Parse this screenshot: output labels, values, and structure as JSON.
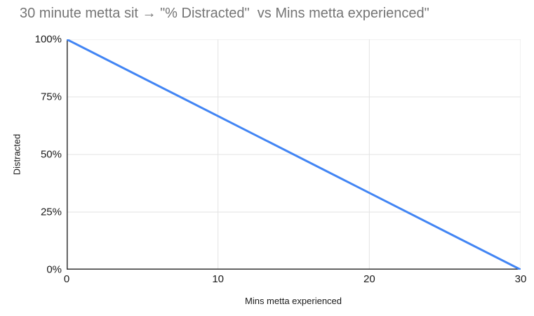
{
  "chart_data": {
    "type": "line",
    "title": "30 minute metta sit → \"% Distracted\"  vs Mins metta experienced\"",
    "xlabel": "Mins metta experienced",
    "ylabel": "Distracted",
    "x": [
      0,
      30
    ],
    "series": [
      {
        "name": "% Distracted",
        "values": [
          100,
          0
        ]
      }
    ],
    "xlim": [
      0,
      30
    ],
    "ylim": [
      0,
      100
    ],
    "x_ticks": [
      0,
      10,
      20,
      30
    ],
    "y_ticks": [
      0,
      25,
      50,
      75,
      100
    ],
    "y_tick_suffix": "%",
    "grid": true,
    "legend_position": "none",
    "colors": {
      "line": "#4285f4",
      "grid": "#e3e3e3",
      "axis": "#333333",
      "title": "#757575",
      "tick_text": "#1a1a1a"
    }
  }
}
